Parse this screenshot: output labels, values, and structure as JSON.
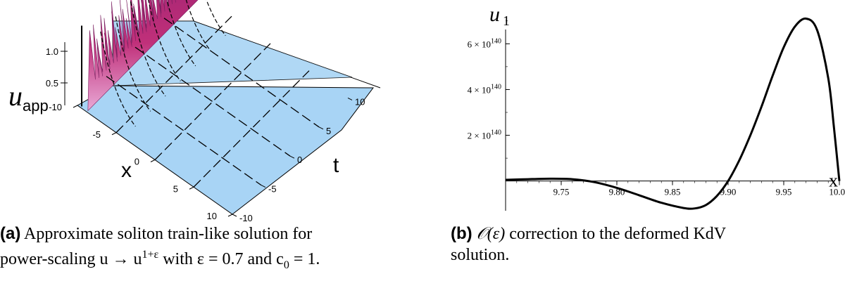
{
  "captions": {
    "a": {
      "tag": "(a)",
      "line1": "Approximate soliton train-like solution for",
      "line2_pre": "power-scaling u → u",
      "line2_sup": "1+ε",
      "line2_post": " with ε = 0.7 and c",
      "line2_sub": "0",
      "line2_end": " = 1."
    },
    "b": {
      "tag": "(b)",
      "line1_sym": "𝒪(ε)",
      "line1_text": " correction to the deformed KdV",
      "line2": "solution."
    }
  },
  "chart_data": [
    {
      "type": "surface",
      "panel": "a",
      "zlabel_main": "u",
      "zlabel_sub": "app",
      "xlabel": "x",
      "tlabel": "t",
      "z_ticks": [
        "1.0",
        "0.5"
      ],
      "x_ticks": [
        "-10",
        "-5",
        "0",
        "5",
        "10"
      ],
      "t_ticks": [
        "10",
        "5",
        "0",
        "-5",
        "-10"
      ],
      "xlim": [
        -10,
        10
      ],
      "tlim": [
        -10,
        10
      ],
      "zlim": [
        0,
        1.1
      ],
      "colors": {
        "base": "#a8d4f5",
        "peaks": "#c0307a",
        "peak_tip": "#b0c8e8",
        "edge": "#000000"
      }
    },
    {
      "type": "line",
      "panel": "b",
      "ylabel_main": "u",
      "ylabel_sub": "1",
      "xlabel": "x",
      "xlim": [
        9.7,
        10.0
      ],
      "ylim": [
        -1.3e+140,
        7.3e+140
      ],
      "x_ticks": [
        9.75,
        9.8,
        9.85,
        9.9,
        9.95,
        10.0
      ],
      "x_tick_labels": [
        "9.75",
        "9.80",
        "9.85",
        "9.90",
        "9.95",
        "10.00"
      ],
      "y_ticks": [
        {
          "value": 2e+140,
          "mant": "2 × 10",
          "exp": "140"
        },
        {
          "value": 4e+140,
          "mant": "4 × 10",
          "exp": "140"
        },
        {
          "value": 6e+140,
          "mant": "6 × 10",
          "exp": "140"
        }
      ],
      "x": [
        9.7,
        9.72,
        9.74,
        9.76,
        9.78,
        9.8,
        9.82,
        9.84,
        9.86,
        9.87,
        9.88,
        9.89,
        9.9,
        9.91,
        9.92,
        9.93,
        9.94,
        9.95,
        9.96,
        9.97,
        9.98,
        9.99,
        9.995,
        10.0
      ],
      "y": [
        5e+138,
        8e+138,
        1e+139,
        8e+138,
        -5e+138,
        -3e+139,
        -6.2e+139,
        -9.5e+139,
        -1.18e+140,
        -1.2e+140,
        -1.05e+140,
        -6.5e+139,
        0.0,
        9e+139,
        2e+140,
        3.25e+140,
        4.6e+140,
        5.85e+140,
        6.75e+140,
        7.1e+140,
        6.6e+140,
        4.5e+140,
        2.4e+140,
        0.0
      ]
    }
  ]
}
